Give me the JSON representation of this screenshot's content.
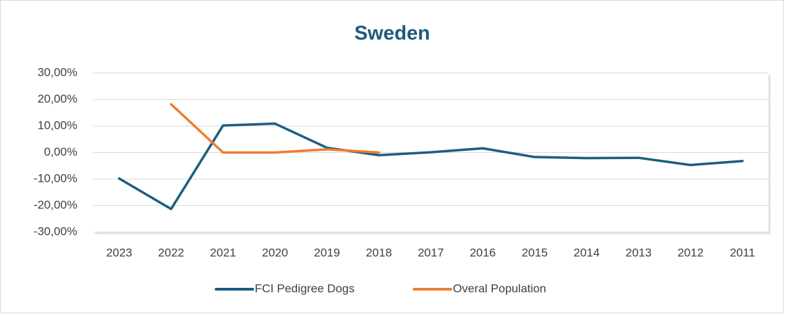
{
  "chart_data": {
    "type": "line",
    "title": "Sweden",
    "categories": [
      "2023",
      "2022",
      "2021",
      "2020",
      "2019",
      "2018",
      "2017",
      "2016",
      "2015",
      "2014",
      "2013",
      "2012",
      "2011"
    ],
    "series": [
      {
        "name": "FCI Pedigree Dogs",
        "color": "#1b5e80",
        "values": [
          -9.8,
          -21.3,
          10.2,
          10.9,
          1.8,
          -1.0,
          0.1,
          1.6,
          -1.7,
          -2.1,
          -2.0,
          -4.7,
          -3.2
        ]
      },
      {
        "name": "Overal Population",
        "color": "#ed7d31",
        "values": [
          null,
          18.2,
          0.0,
          0.0,
          1.2,
          0.0,
          null,
          null,
          null,
          null,
          null,
          null,
          null
        ]
      }
    ],
    "ylim": [
      -30,
      30
    ],
    "yticks": [
      {
        "value": -30,
        "label": "-30,00%"
      },
      {
        "value": -20,
        "label": "-20,00%"
      },
      {
        "value": -10,
        "label": "-10,00%"
      },
      {
        "value": 0,
        "label": "0,00%"
      },
      {
        "value": 10,
        "label": "10,00%"
      },
      {
        "value": 20,
        "label": "20,00%"
      },
      {
        "value": 30,
        "label": "30,00%"
      }
    ],
    "grid": true
  }
}
